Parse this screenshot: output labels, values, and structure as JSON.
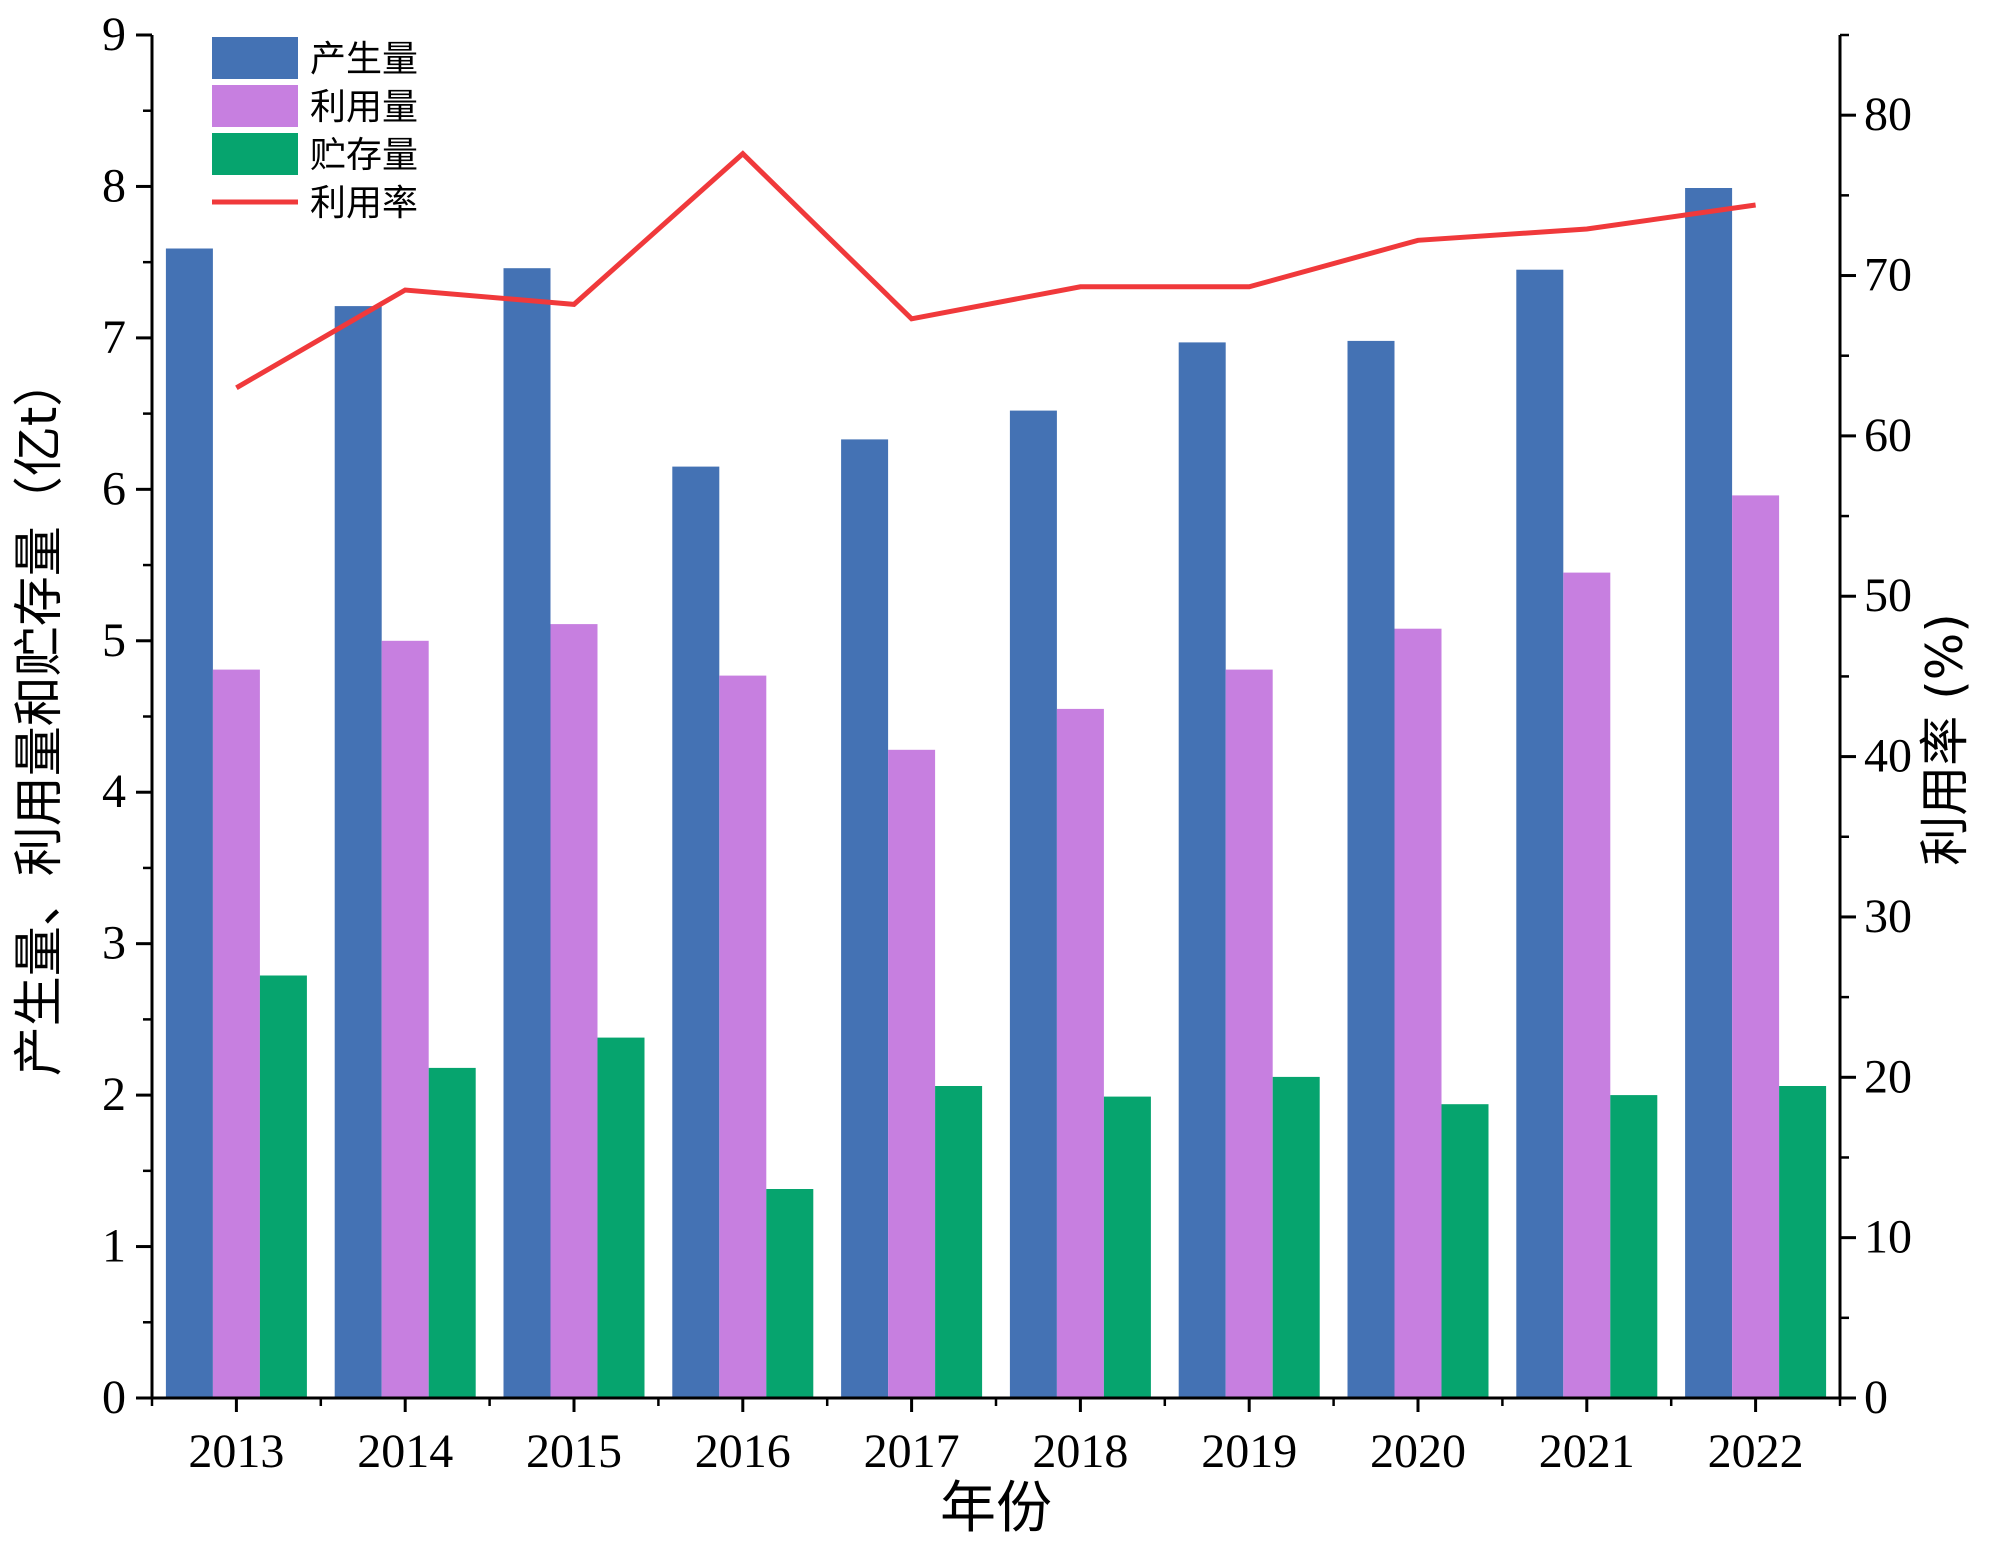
{
  "chart_data": {
    "type": "bar",
    "title": "",
    "categories": [
      "2013",
      "2014",
      "2015",
      "2016",
      "2017",
      "2018",
      "2019",
      "2020",
      "2021",
      "2022"
    ],
    "xlabel": "年份",
    "ylabel": "产生量、利用量和贮存量（亿t）",
    "y2label": "利用率 (%)",
    "ylim": [
      0,
      9
    ],
    "y2lim": [
      0,
      85
    ],
    "yticks": [
      "0",
      "1",
      "2",
      "3",
      "4",
      "5",
      "6",
      "7",
      "8",
      "9"
    ],
    "y2ticks": [
      "0",
      "10",
      "20",
      "30",
      "40",
      "50",
      "60",
      "70",
      "80"
    ],
    "series": [
      {
        "name": "产生量",
        "kind": "bar",
        "axis": "left",
        "color": "#4472b4",
        "values": [
          7.59,
          7.21,
          7.46,
          6.15,
          6.33,
          6.52,
          6.97,
          6.98,
          7.45,
          7.99
        ]
      },
      {
        "name": "利用量",
        "kind": "bar",
        "axis": "left",
        "color": "#c77fe0",
        "values": [
          4.81,
          5.0,
          5.11,
          4.77,
          4.28,
          4.55,
          4.81,
          5.08,
          5.45,
          5.96
        ]
      },
      {
        "name": "贮存量",
        "kind": "bar",
        "axis": "left",
        "color": "#06a46e",
        "values": [
          2.79,
          2.18,
          2.38,
          1.38,
          2.06,
          1.99,
          2.12,
          1.94,
          2.0,
          2.06
        ]
      },
      {
        "name": "利用率",
        "kind": "line",
        "axis": "right",
        "color": "#f0393b",
        "values": [
          63.0,
          69.1,
          68.2,
          77.6,
          67.3,
          69.3,
          69.3,
          72.2,
          72.9,
          74.4
        ]
      }
    ],
    "legend_position": "top-left",
    "grid": false
  }
}
